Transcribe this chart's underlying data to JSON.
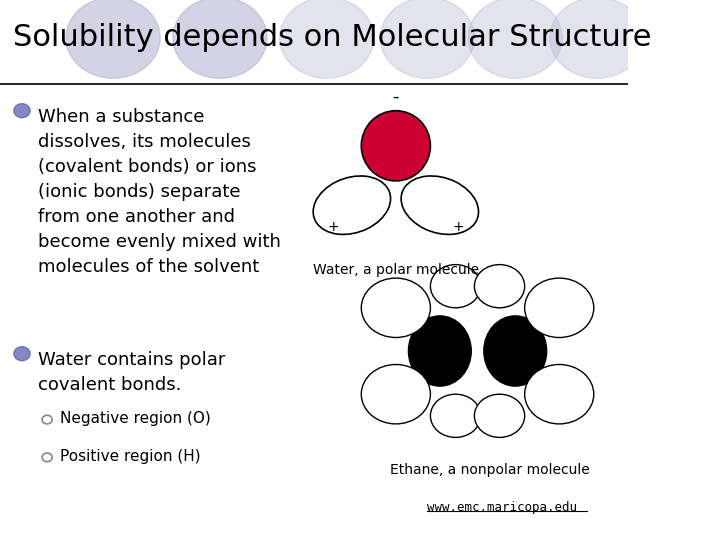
{
  "title": "Solubility depends on Molecular Structure",
  "title_fontsize": 22,
  "background_color": "#ffffff",
  "bullet_color": "#5555aa",
  "bullet1_text": "When a substance\ndissolves, its molecules\n(covalent bonds) or ions\n(ionic bonds) separate\nfrom one another and\nbecome evenly mixed with\nmolecules of the solvent",
  "bullet2_text": "Water contains polar\ncovalent bonds.",
  "sub1": "Negative region (O)",
  "sub2": "Positive region (H)",
  "water_label": "Water, a polar molecule",
  "ethane_label": "Ethane, a nonpolar molecule",
  "url_text": "www.emc.maricopa.edu",
  "circle_color": "#b0b0d0",
  "text_fontsize": 13,
  "sub_fontsize": 11,
  "label_fontsize": 10
}
